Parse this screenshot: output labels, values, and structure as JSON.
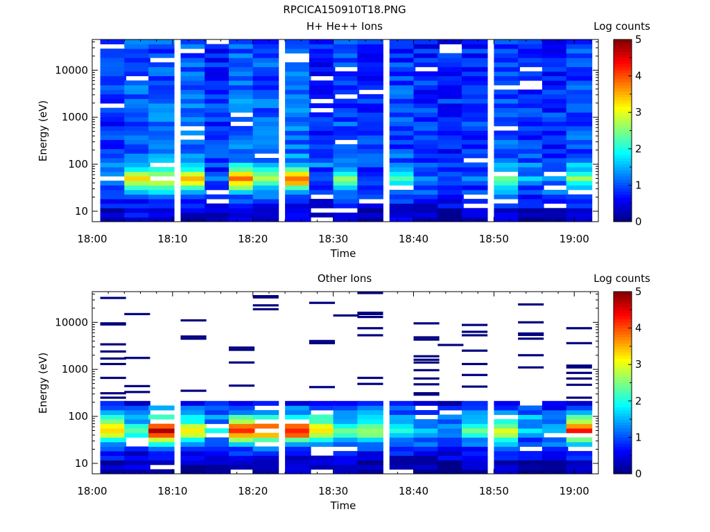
{
  "figure_title": "RPCICA150910T18.PNG",
  "colors": {
    "jet": [
      "#00007f",
      "#0000ff",
      "#007fff",
      "#00ffff",
      "#7fff7f",
      "#ffff00",
      "#ff7f00",
      "#ff0000",
      "#7f0000"
    ]
  },
  "chart_data": [
    {
      "type": "heatmap",
      "title": "H+ He++ Ions",
      "xlabel": "Time",
      "ylabel": "Energy (eV)",
      "colorbar_label": "Log counts",
      "colorbar_ticks": [
        "0",
        "1",
        "2",
        "3",
        "4",
        "5"
      ],
      "clim": [
        0,
        5
      ],
      "xlim": [
        "18:00",
        "19:03"
      ],
      "ylim_eV": [
        6,
        45000
      ],
      "yscale": "log",
      "x_ticks": [
        "18:00",
        "18:10",
        "18:20",
        "18:30",
        "18:40",
        "18:50",
        "19:00"
      ],
      "y_ticks": [
        "10",
        "100",
        "1000",
        "10000"
      ],
      "time_bin_starts": [
        "18:01",
        "18:04",
        "18:07",
        "18:11",
        "18:14",
        "18:17",
        "18:20",
        "18:24",
        "18:27",
        "18:30",
        "18:33",
        "18:37",
        "18:40",
        "18:43",
        "18:46",
        "18:50",
        "18:53",
        "18:56",
        "18:59"
      ],
      "time_bin_width_min": 3.2,
      "energy_profile": {
        "energies_eV": [
          7,
          12,
          20,
          30,
          40,
          50,
          60,
          80,
          120,
          200,
          400,
          1000,
          3000,
          10000,
          30000
        ],
        "log_counts": [
          0.45,
          0.65,
          1.0,
          1.9,
          2.8,
          3.3,
          2.9,
          2.0,
          1.3,
          1.1,
          1.15,
          1.1,
          1.1,
          1.05,
          1.0
        ]
      },
      "time_bin_peak_log_counts": [
        1.5,
        3.2,
        3.3,
        3.4,
        1.2,
        3.8,
        2.8,
        3.9,
        1.1,
        2.4,
        1.1,
        2.2,
        1.2,
        1.0,
        1.3,
        2.3,
        1.5,
        1.3,
        2.5
      ],
      "empty_cell_fraction": 0.07
    },
    {
      "type": "heatmap",
      "title": "Other Ions",
      "xlabel": "Time",
      "ylabel": "Energy (eV)",
      "colorbar_label": "Log counts",
      "colorbar_ticks": [
        "0",
        "1",
        "2",
        "3",
        "4",
        "5"
      ],
      "clim": [
        0,
        5
      ],
      "xlim": [
        "18:00",
        "19:03"
      ],
      "ylim_eV": [
        6,
        45000
      ],
      "yscale": "log",
      "x_ticks": [
        "18:00",
        "18:10",
        "18:20",
        "18:30",
        "18:40",
        "18:50",
        "19:00"
      ],
      "y_ticks": [
        "10",
        "100",
        "1000",
        "10000"
      ],
      "time_bin_starts": [
        "18:01",
        "18:04",
        "18:07",
        "18:11",
        "18:14",
        "18:17",
        "18:20",
        "18:24",
        "18:27",
        "18:30",
        "18:33",
        "18:37",
        "18:40",
        "18:43",
        "18:46",
        "18:50",
        "18:53",
        "18:56",
        "18:59"
      ],
      "time_bin_width_min": 3.2,
      "energy_profile": {
        "energies_eV": [
          7,
          12,
          20,
          30,
          40,
          50,
          60,
          80,
          120,
          200,
          400,
          1000,
          3000,
          10000,
          30000
        ],
        "log_counts": [
          0.3,
          0.5,
          0.9,
          2.0,
          3.3,
          3.8,
          3.6,
          2.5,
          1.5,
          0.6,
          0.3,
          0.3,
          0.3,
          0.3,
          0.3
        ]
      },
      "time_bin_peak_log_counts": [
        3.4,
        2.2,
        4.6,
        3.1,
        1.8,
        4.1,
        4.2,
        4.3,
        3.3,
        2.2,
        2.8,
        2.0,
        1.5,
        1.3,
        2.4,
        2.9,
        1.6,
        1.4,
        4.1
      ],
      "high_energy_lines_eV": [
        [
          33000,
          9500,
          9000,
          3400,
          2400,
          1700,
          1300,
          660,
          310,
          250
        ],
        [
          15000,
          1750,
          440,
          330
        ],
        [],
        [
          11000,
          5000,
          4500,
          350
        ],
        [],
        [
          2900,
          2600,
          1400,
          450
        ],
        [
          36000,
          34000,
          23000,
          19000
        ],
        [],
        [
          26000,
          4000,
          3600,
          420
        ],
        [
          14000
        ],
        [
          42000,
          16000,
          15000,
          13000,
          7500,
          5300,
          660,
          490
        ],
        [],
        [
          9500,
          4800,
          4300,
          1900,
          1600,
          1400,
          960,
          640,
          480,
          310,
          290
        ],
        [
          3300
        ],
        [
          8800,
          6300,
          5300,
          2500,
          1300,
          760,
          430
        ],
        [],
        [
          24000,
          10000,
          5800,
          5400,
          4500,
          2000,
          1100
        ],
        [],
        [
          7500,
          3600,
          1200,
          1100,
          840,
          640,
          470,
          250
        ]
      ]
    }
  ]
}
